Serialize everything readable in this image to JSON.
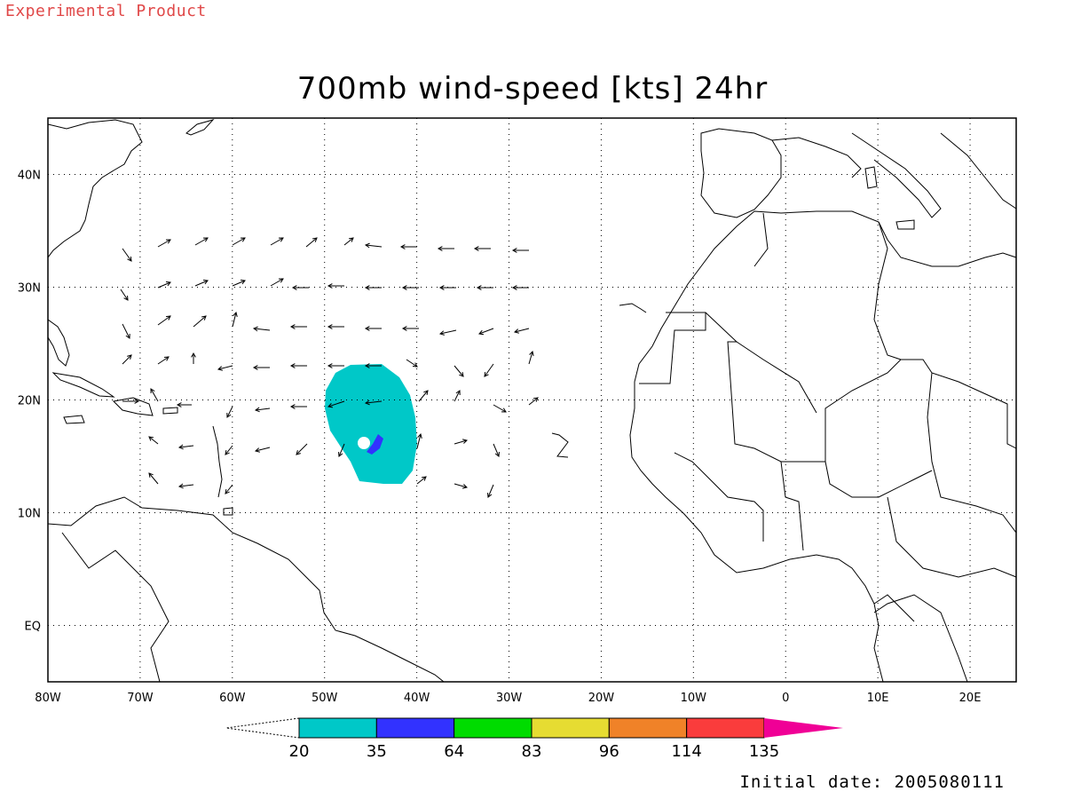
{
  "header": {
    "product_label": "Experimental Product",
    "title": "700mb wind-speed [kts] 24hr"
  },
  "footer": {
    "initial_date": "Initial date: 2005080111"
  },
  "map": {
    "lon_range": [
      -80,
      25
    ],
    "lat_range": [
      -5,
      45
    ],
    "lon_ticks": [
      {
        "value": -80,
        "label": "80W"
      },
      {
        "value": -70,
        "label": "70W"
      },
      {
        "value": -60,
        "label": "60W"
      },
      {
        "value": -50,
        "label": "50W"
      },
      {
        "value": -40,
        "label": "40W"
      },
      {
        "value": -30,
        "label": "30W"
      },
      {
        "value": -20,
        "label": "20W"
      },
      {
        "value": -10,
        "label": "10W"
      },
      {
        "value": 0,
        "label": "0"
      },
      {
        "value": 10,
        "label": "10E"
      },
      {
        "value": 20,
        "label": "20E"
      }
    ],
    "lat_ticks": [
      {
        "value": 40,
        "label": "40N"
      },
      {
        "value": 30,
        "label": "30N"
      },
      {
        "value": 20,
        "label": "20N"
      },
      {
        "value": 10,
        "label": "10N"
      },
      {
        "value": 0,
        "label": "EQ"
      }
    ],
    "colorbar": {
      "colors": [
        "#00c8c8",
        "#3232ff",
        "#00dc00",
        "#e6dc32",
        "#f08228",
        "#fa3c3c",
        "#f00096"
      ],
      "labels": [
        "20",
        "35",
        "64",
        "83",
        "96",
        "114",
        "135"
      ]
    },
    "wind_shading": {
      "fill": "#00c8c8",
      "core_fill": "#3232ff",
      "center_lon": -44.5,
      "center_lat": 18
    }
  }
}
